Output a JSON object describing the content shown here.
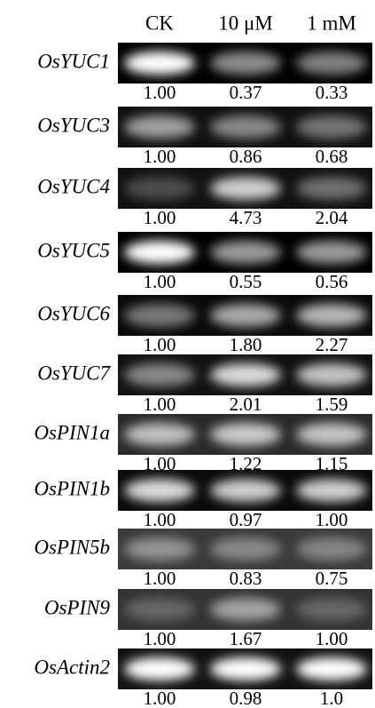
{
  "header": {
    "columns": [
      "CK",
      "10 μM",
      "1 mM"
    ]
  },
  "rows": [
    {
      "gene": "OsYUC1",
      "values": [
        "1.00",
        "0.37",
        "0.33"
      ]
    },
    {
      "gene": "OsYUC3",
      "values": [
        "1.00",
        "0.86",
        "0.68"
      ]
    },
    {
      "gene": "OsYUC4",
      "values": [
        "1.00",
        "4.73",
        "2.04"
      ]
    },
    {
      "gene": "OsYUC5",
      "values": [
        "1.00",
        "0.55",
        "0.56"
      ]
    },
    {
      "gene": "OsYUC6",
      "values": [
        "1.00",
        "1.80",
        "2.27"
      ]
    },
    {
      "gene": "OsYUC7",
      "values": [
        "1.00",
        "2.01",
        "1.59"
      ]
    },
    {
      "gene": "OsPIN1a",
      "values": [
        "1.00",
        "1.22",
        "1.15"
      ]
    },
    {
      "gene": "OsPIN1b",
      "values": [
        "1.00",
        "0.97",
        "1.00"
      ]
    },
    {
      "gene": "OsPIN5b",
      "values": [
        "1.00",
        "0.83",
        "0.75"
      ]
    },
    {
      "gene": "OsPIN9",
      "values": [
        "1.00",
        "1.67",
        "1.00"
      ]
    },
    {
      "gene": "OsActin2",
      "values": [
        "1.00",
        "0.98",
        "1.0"
      ]
    }
  ]
}
